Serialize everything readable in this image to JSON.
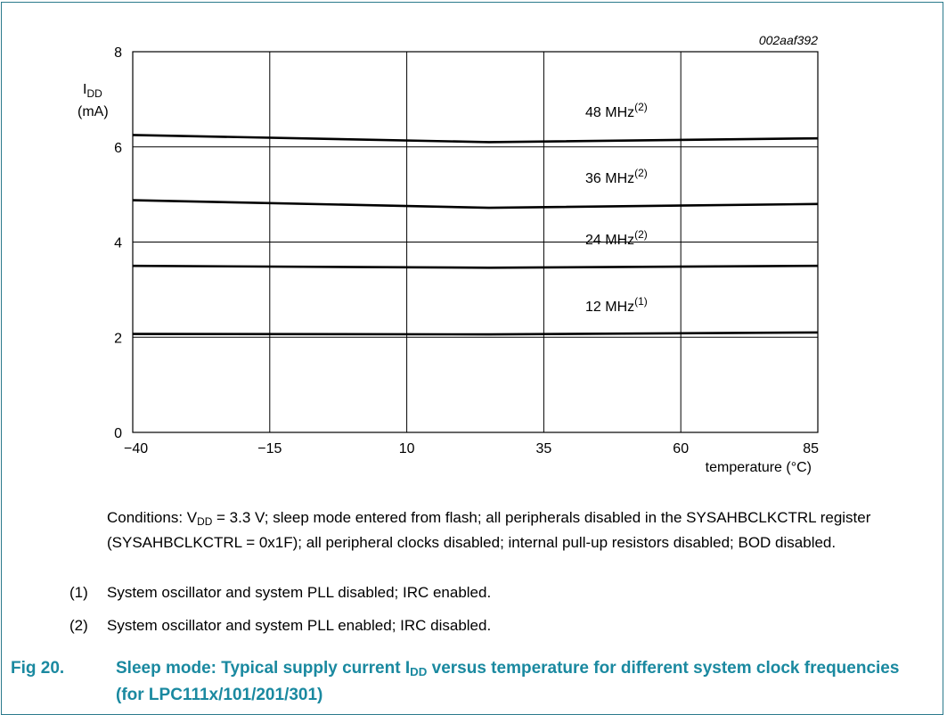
{
  "chart_data": {
    "type": "line",
    "figure_id": "002aaf392",
    "ylabel_main": "I",
    "ylabel_sub": "DD",
    "ylabel_unit": "(mA)",
    "xlabel": "temperature (°C)",
    "x_ticks": [
      "−40",
      "−15",
      "10",
      "35",
      "60",
      "85"
    ],
    "y_ticks": [
      "0",
      "2",
      "4",
      "6",
      "8"
    ],
    "xlim": [
      -40,
      85
    ],
    "ylim": [
      0,
      8
    ],
    "grid": true,
    "series": [
      {
        "name": "48 MHz",
        "note": "(2)",
        "x": [
          -40,
          25,
          85
        ],
        "y": [
          6.25,
          6.1,
          6.18
        ]
      },
      {
        "name": "36 MHz",
        "note": "(2)",
        "x": [
          -40,
          25,
          85
        ],
        "y": [
          4.88,
          4.72,
          4.8
        ]
      },
      {
        "name": "24 MHz",
        "note": "(2)",
        "x": [
          -40,
          25,
          85
        ],
        "y": [
          3.5,
          3.46,
          3.5
        ]
      },
      {
        "name": "12 MHz",
        "note": "(1)",
        "x": [
          -40,
          25,
          85
        ],
        "y": [
          2.07,
          2.06,
          2.1
        ]
      }
    ]
  },
  "conditions": {
    "prefix": "Conditions: V",
    "sub": "DD",
    "text": " = 3.3 V; sleep mode entered from flash; all peripherals disabled in the SYSAHBCLKCTRL register (SYSAHBCLKCTRL = 0x1F); all peripheral clocks disabled; internal pull-up resistors disabled; BOD disabled."
  },
  "notes": [
    {
      "num": "(1)",
      "text": "System oscillator and system PLL disabled; IRC enabled."
    },
    {
      "num": "(2)",
      "text": "System oscillator and system PLL enabled; IRC disabled."
    }
  ],
  "caption": {
    "number": "Fig 20.",
    "text_before": "Sleep mode: Typical supply current I",
    "sub": "DD",
    "text_after": " versus temperature for different system clock frequencies (for LPC111x/101/201/301)"
  }
}
